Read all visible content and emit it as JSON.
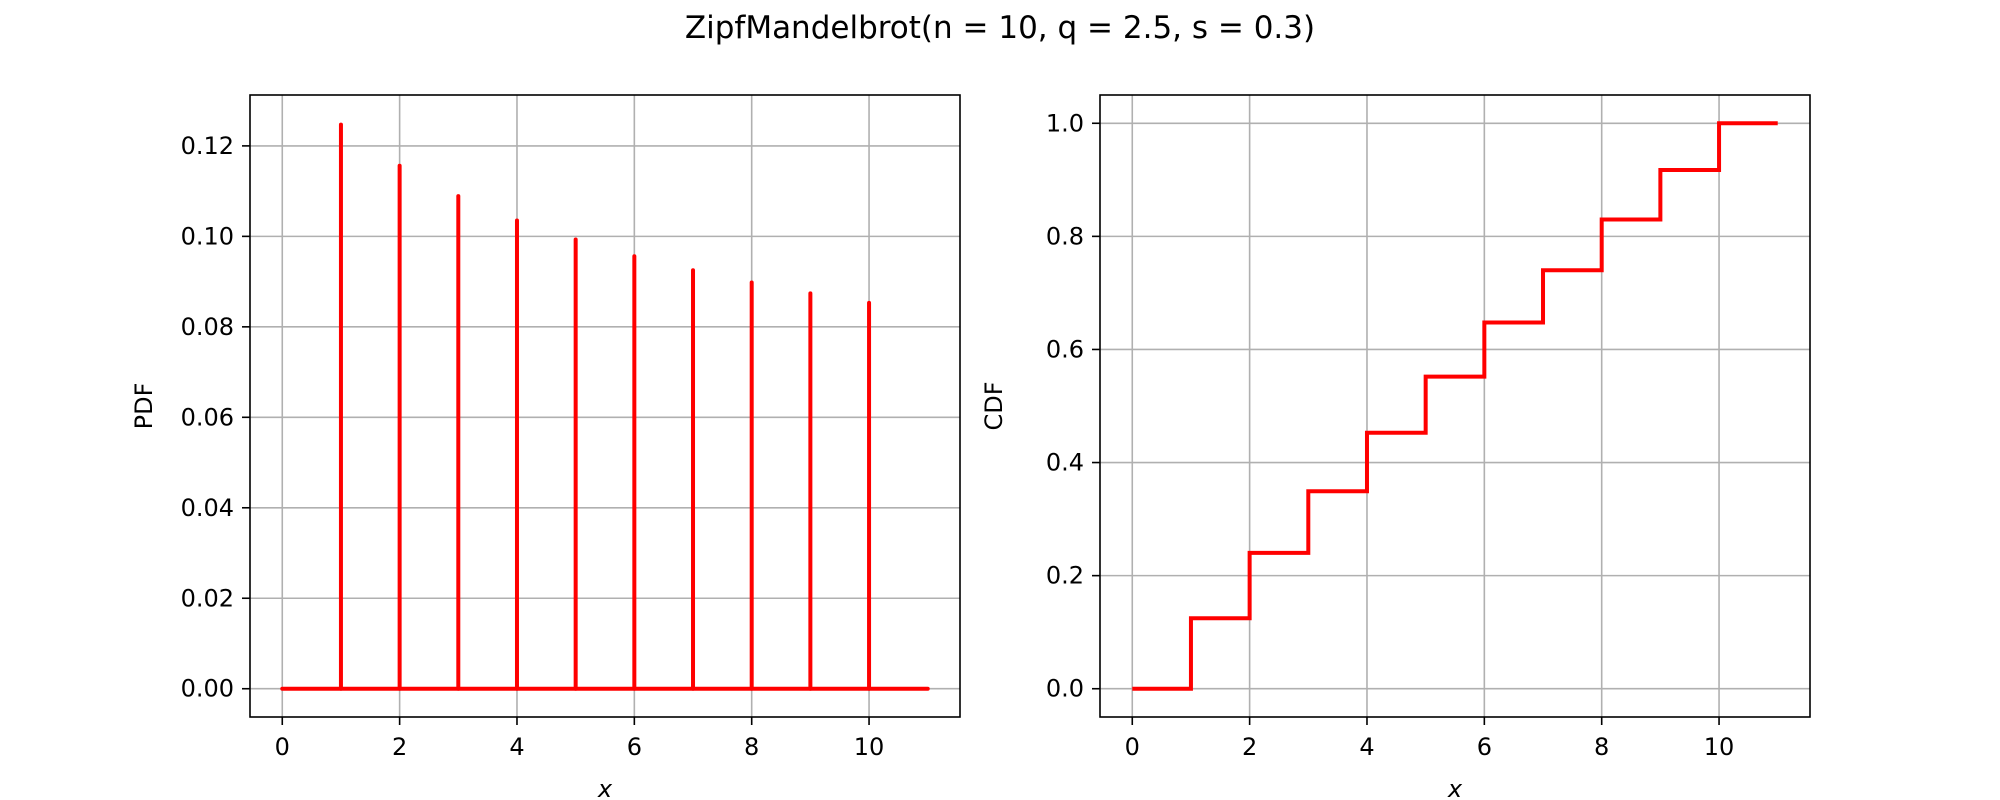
{
  "title": "ZipfMandelbrot(n = 10, q = 2.5, s = 0.3)",
  "colors": {
    "series": "#ff0000",
    "grid": "#b0b0b0",
    "axes": "#000000"
  },
  "chart_data": [
    {
      "type": "stem",
      "xlabel": "x",
      "ylabel": "PDF",
      "xlim": [
        -0.55,
        11.55
      ],
      "ylim": [
        -0.00625,
        0.13125
      ],
      "xticks": [
        0,
        2,
        4,
        6,
        8,
        10
      ],
      "xtick_labels": [
        "0",
        "2",
        "4",
        "6",
        "8",
        "10"
      ],
      "yticks": [
        0,
        0.02,
        0.04,
        0.06,
        0.08,
        0.1,
        0.12
      ],
      "ytick_labels": [
        "0.00",
        "0.02",
        "0.04",
        "0.06",
        "0.08",
        "0.10",
        "0.12"
      ],
      "grid": true,
      "baseline": [
        0,
        11
      ],
      "x": [
        1,
        2,
        3,
        4,
        5,
        6,
        7,
        8,
        9,
        10
      ],
      "y": [
        0.1247,
        0.1156,
        0.1089,
        0.1035,
        0.0993,
        0.0956,
        0.0925,
        0.0898,
        0.0874,
        0.0853
      ]
    },
    {
      "type": "step",
      "xlabel": "x",
      "ylabel": "CDF",
      "xlim": [
        -0.55,
        11.55
      ],
      "ylim": [
        -0.05,
        1.05
      ],
      "xticks": [
        0,
        2,
        4,
        6,
        8,
        10
      ],
      "xtick_labels": [
        "0",
        "2",
        "4",
        "6",
        "8",
        "10"
      ],
      "yticks": [
        0,
        0.2,
        0.4,
        0.6,
        0.8,
        1.0
      ],
      "ytick_labels": [
        "0.0",
        "0.2",
        "0.4",
        "0.6",
        "0.8",
        "1.0"
      ],
      "grid": true,
      "x": [
        0,
        1,
        2,
        3,
        4,
        5,
        6,
        7,
        8,
        9,
        10,
        11
      ],
      "y": [
        0,
        0.1247,
        0.2403,
        0.3492,
        0.4527,
        0.552,
        0.6476,
        0.7401,
        0.8299,
        0.9173,
        1.0,
        1.0
      ]
    }
  ]
}
